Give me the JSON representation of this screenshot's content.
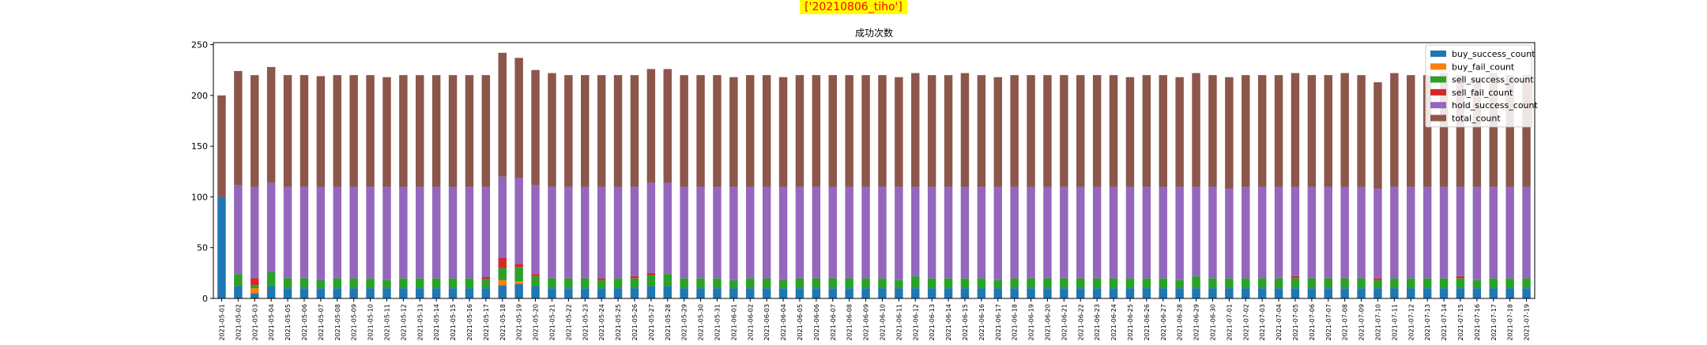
{
  "figure": {
    "suptitle": "['20210806_tiho']",
    "suptitle_bg": "#ffff00",
    "suptitle_color": "#ff0000"
  },
  "chart_data": {
    "type": "bar",
    "stacked": true,
    "title": "成功次数",
    "xlabel": "",
    "ylabel": "",
    "ylim": [
      0,
      252
    ],
    "yticks": [
      0,
      50,
      100,
      150,
      200,
      250
    ],
    "legend_position": "top-right",
    "grid": false,
    "categories": [
      "2021-05-01",
      "2021-05-02",
      "2021-05-03",
      "2021-05-04",
      "2021-05-05",
      "2021-05-06",
      "2021-05-07",
      "2021-05-08",
      "2021-05-09",
      "2021-05-10",
      "2021-05-11",
      "2021-05-12",
      "2021-05-13",
      "2021-05-14",
      "2021-05-15",
      "2021-05-16",
      "2021-05-17",
      "2021-05-18",
      "2021-05-19",
      "2021-05-20",
      "2021-05-21",
      "2021-05-22",
      "2021-05-23",
      "2021-05-24",
      "2021-05-25",
      "2021-05-26",
      "2021-05-27",
      "2021-05-28",
      "2021-05-29",
      "2021-05-30",
      "2021-05-31",
      "2021-06-01",
      "2021-06-02",
      "2021-06-03",
      "2021-06-04",
      "2021-06-05",
      "2021-06-06",
      "2021-06-07",
      "2021-06-08",
      "2021-06-09",
      "2021-06-10",
      "2021-06-11",
      "2021-06-12",
      "2021-06-13",
      "2021-06-14",
      "2021-06-15",
      "2021-06-16",
      "2021-06-17",
      "2021-06-18",
      "2021-06-19",
      "2021-06-20",
      "2021-06-21",
      "2021-06-22",
      "2021-06-23",
      "2021-06-24",
      "2021-06-25",
      "2021-06-26",
      "2021-06-27",
      "2021-06-28",
      "2021-06-29",
      "2021-06-30",
      "2021-07-01",
      "2021-07-02",
      "2021-07-03",
      "2021-07-04",
      "2021-07-05",
      "2021-07-06",
      "2021-07-07",
      "2021-07-08",
      "2021-07-09",
      "2021-07-10",
      "2021-07-11",
      "2021-07-12",
      "2021-07-13",
      "2021-07-14",
      "2021-07-15",
      "2021-07-16",
      "2021-07-17",
      "2021-07-18",
      "2021-07-19"
    ],
    "series": [
      {
        "name": "buy_success_count",
        "color": "#1f77b4",
        "values": [
          100,
          12,
          5,
          12,
          10,
          10,
          10,
          10,
          10,
          10,
          10,
          10,
          10,
          10,
          10,
          10,
          10,
          13,
          14,
          12,
          10,
          10,
          10,
          10,
          10,
          10,
          12,
          12,
          10,
          10,
          10,
          10,
          10,
          10,
          10,
          10,
          10,
          10,
          10,
          10,
          10,
          10,
          10,
          10,
          10,
          10,
          10,
          10,
          10,
          10,
          10,
          10,
          10,
          10,
          10,
          10,
          10,
          10,
          10,
          10,
          10,
          10,
          10,
          10,
          10,
          10,
          10,
          10,
          10,
          10,
          10,
          10,
          10,
          10,
          10,
          10,
          10,
          10,
          10,
          10
        ]
      },
      {
        "name": "buy_fail_count",
        "color": "#ff7f0e",
        "values": [
          0,
          0,
          5,
          0,
          0,
          0,
          0,
          0,
          0,
          0,
          0,
          0,
          0,
          0,
          0,
          0,
          0,
          5,
          3,
          0,
          0,
          0,
          0,
          0,
          0,
          0,
          0,
          0,
          0,
          0,
          0,
          0,
          0,
          0,
          0,
          0,
          0,
          0,
          0,
          0,
          0,
          0,
          0,
          0,
          0,
          0,
          0,
          0,
          0,
          0,
          0,
          0,
          0,
          0,
          0,
          0,
          0,
          0,
          0,
          0,
          0,
          0,
          0,
          0,
          0,
          0,
          0,
          0,
          0,
          0,
          0,
          0,
          0,
          0,
          0,
          0,
          0,
          0,
          0,
          0
        ]
      },
      {
        "name": "sell_success_count",
        "color": "#2ca02c",
        "values": [
          0,
          12,
          3,
          14,
          10,
          10,
          8,
          10,
          10,
          10,
          8,
          10,
          10,
          10,
          10,
          10,
          9,
          12,
          14,
          10,
          10,
          10,
          10,
          8,
          10,
          10,
          11,
          12,
          10,
          10,
          10,
          8,
          10,
          10,
          8,
          10,
          10,
          10,
          10,
          10,
          10,
          8,
          12,
          10,
          10,
          10,
          10,
          8,
          10,
          10,
          10,
          10,
          10,
          10,
          10,
          10,
          10,
          10,
          8,
          12,
          10,
          10,
          10,
          10,
          10,
          10,
          10,
          10,
          10,
          10,
          8,
          10,
          10,
          10,
          10,
          10,
          8,
          10,
          10,
          10
        ]
      },
      {
        "name": "sell_fail_count",
        "color": "#d62728",
        "values": [
          0,
          0,
          7,
          0,
          0,
          0,
          0,
          0,
          0,
          0,
          0,
          0,
          0,
          0,
          0,
          0,
          2,
          10,
          3,
          2,
          0,
          0,
          0,
          2,
          0,
          2,
          2,
          0,
          0,
          0,
          0,
          0,
          0,
          0,
          0,
          0,
          0,
          0,
          0,
          0,
          0,
          0,
          0,
          0,
          0,
          0,
          0,
          0,
          0,
          0,
          0,
          0,
          0,
          0,
          0,
          0,
          0,
          0,
          0,
          0,
          0,
          0,
          0,
          0,
          0,
          2,
          0,
          0,
          0,
          0,
          2,
          0,
          0,
          0,
          0,
          2,
          0,
          0,
          0,
          0
        ]
      },
      {
        "name": "hold_success_count",
        "color": "#9467bd",
        "values": [
          0,
          88,
          90,
          88,
          90,
          90,
          92,
          90,
          90,
          90,
          92,
          90,
          90,
          90,
          90,
          90,
          89,
          80,
          85,
          88,
          90,
          90,
          90,
          90,
          90,
          88,
          89,
          90,
          90,
          90,
          90,
          92,
          90,
          90,
          92,
          90,
          90,
          90,
          90,
          90,
          90,
          92,
          88,
          90,
          90,
          90,
          90,
          92,
          90,
          90,
          90,
          90,
          90,
          90,
          90,
          90,
          90,
          90,
          92,
          88,
          90,
          88,
          90,
          90,
          90,
          88,
          90,
          90,
          90,
          90,
          88,
          90,
          90,
          90,
          90,
          88,
          92,
          90,
          90,
          90
        ]
      },
      {
        "name": "total_count",
        "color": "#8c564b",
        "values": [
          100,
          112,
          110,
          114,
          110,
          110,
          109,
          110,
          110,
          110,
          108,
          110,
          110,
          110,
          110,
          110,
          110,
          122,
          118,
          113,
          112,
          110,
          110,
          110,
          110,
          110,
          112,
          112,
          110,
          110,
          110,
          108,
          110,
          110,
          108,
          110,
          110,
          110,
          110,
          110,
          110,
          108,
          112,
          110,
          110,
          112,
          110,
          108,
          110,
          110,
          110,
          110,
          110,
          110,
          110,
          108,
          110,
          110,
          108,
          112,
          110,
          110,
          110,
          110,
          110,
          112,
          110,
          110,
          112,
          110,
          105,
          112,
          110,
          110,
          112,
          110,
          108,
          112,
          110,
          110
        ]
      }
    ]
  }
}
